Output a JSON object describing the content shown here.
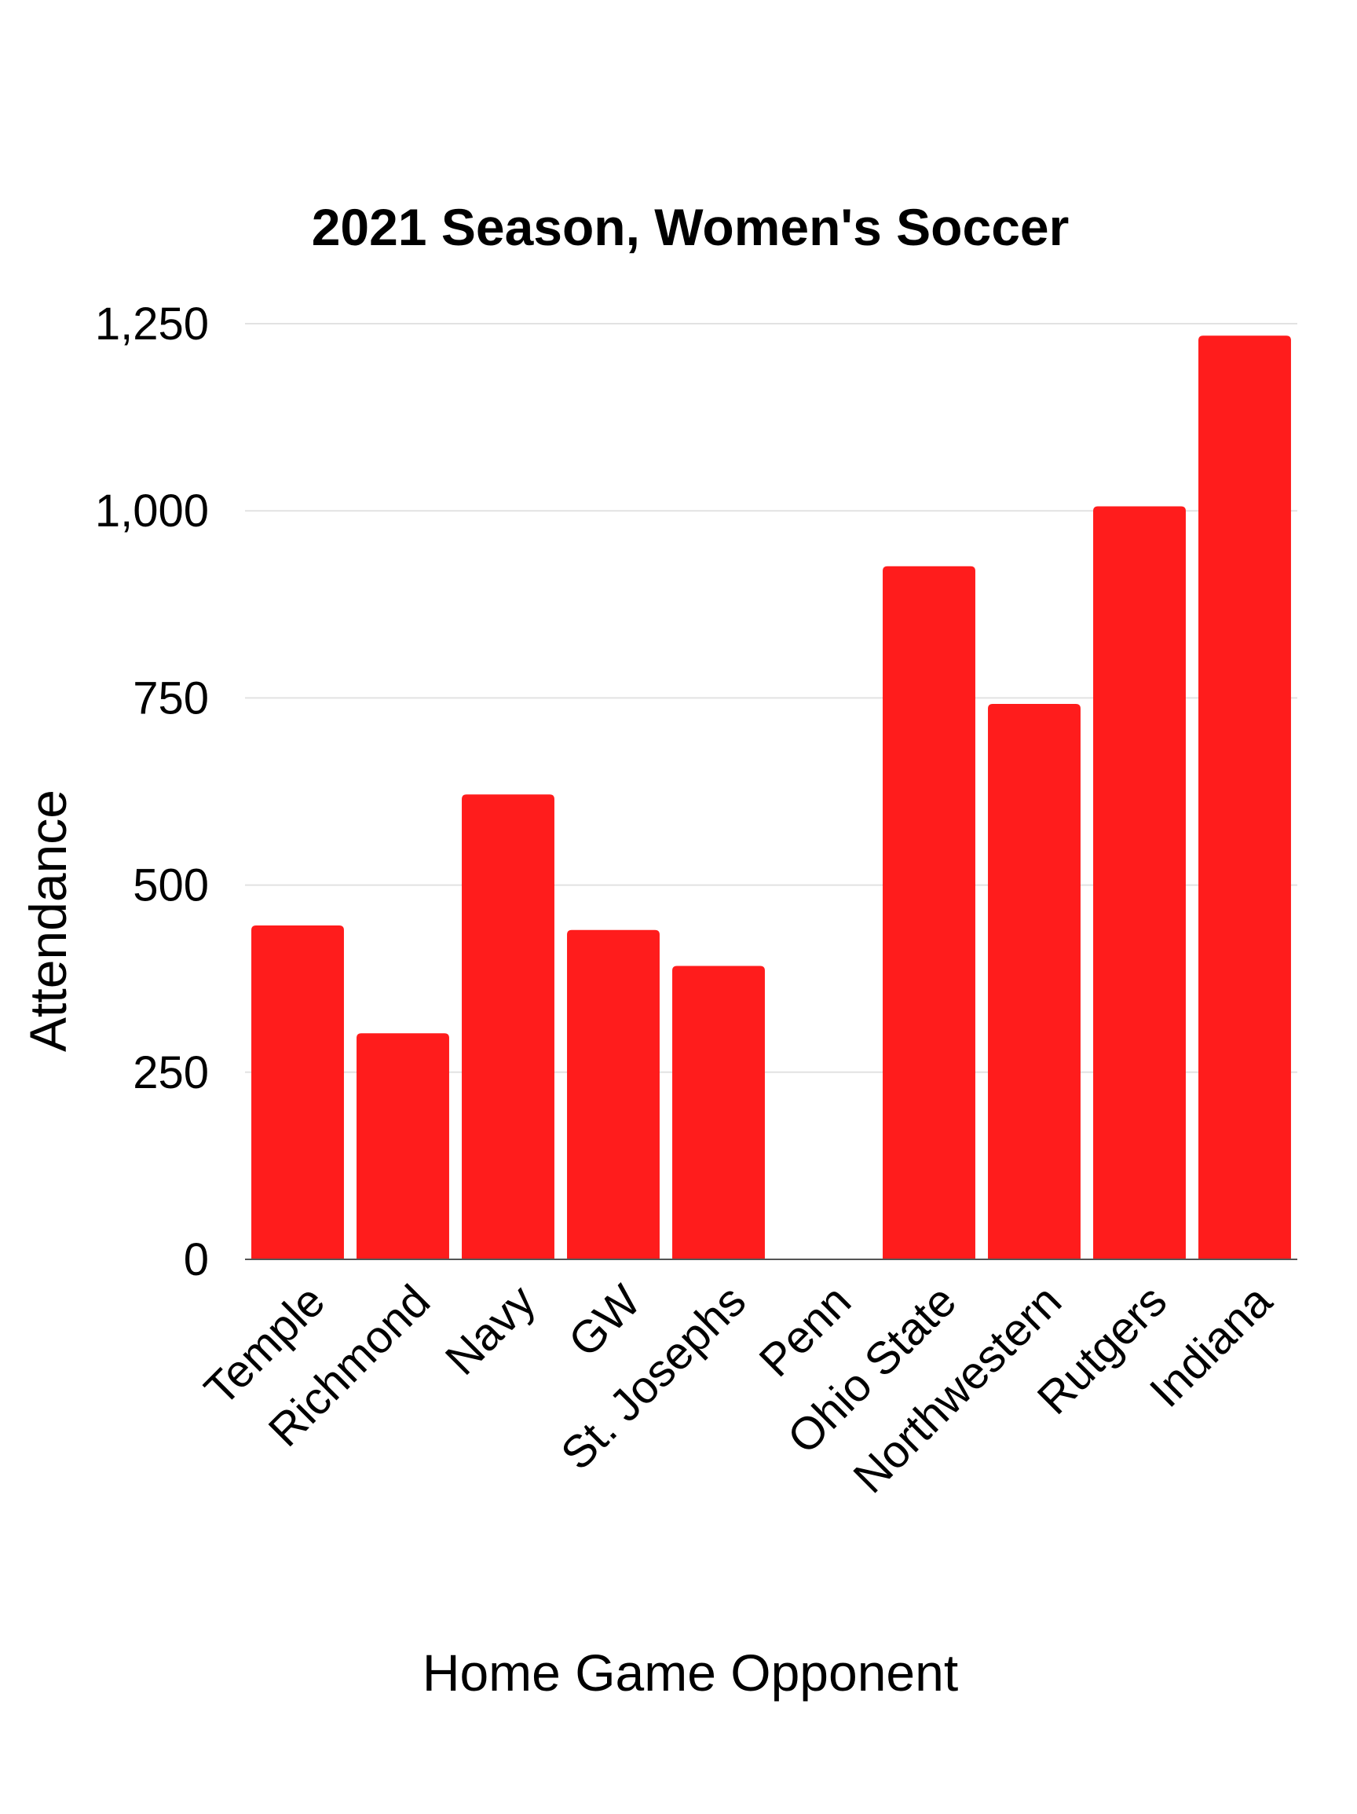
{
  "chart_data": {
    "type": "bar",
    "title": "2021 Season, Women's Soccer",
    "xlabel": "Home Game Opponent",
    "ylabel": "Attendance",
    "categories": [
      "Temple",
      "Richmond",
      "Navy",
      "GW",
      "St. Josephs",
      "Penn",
      "Ohio State",
      "Northwestern",
      "Rutgers",
      "Indiana"
    ],
    "values": [
      446,
      302,
      621,
      440,
      392,
      0,
      926,
      742,
      1006,
      1234
    ],
    "ylim": [
      0,
      1250
    ],
    "yticks": [
      0,
      250,
      500,
      750,
      1000,
      1250
    ],
    "ytick_labels": [
      "0",
      "250",
      "500",
      "750",
      "1,000",
      "1,250"
    ],
    "grid": true,
    "legend": "none",
    "colors": {
      "bar": "#ff1c1c",
      "grid": "#e2e2e2",
      "axis": "#555555",
      "text": "#000000"
    }
  }
}
